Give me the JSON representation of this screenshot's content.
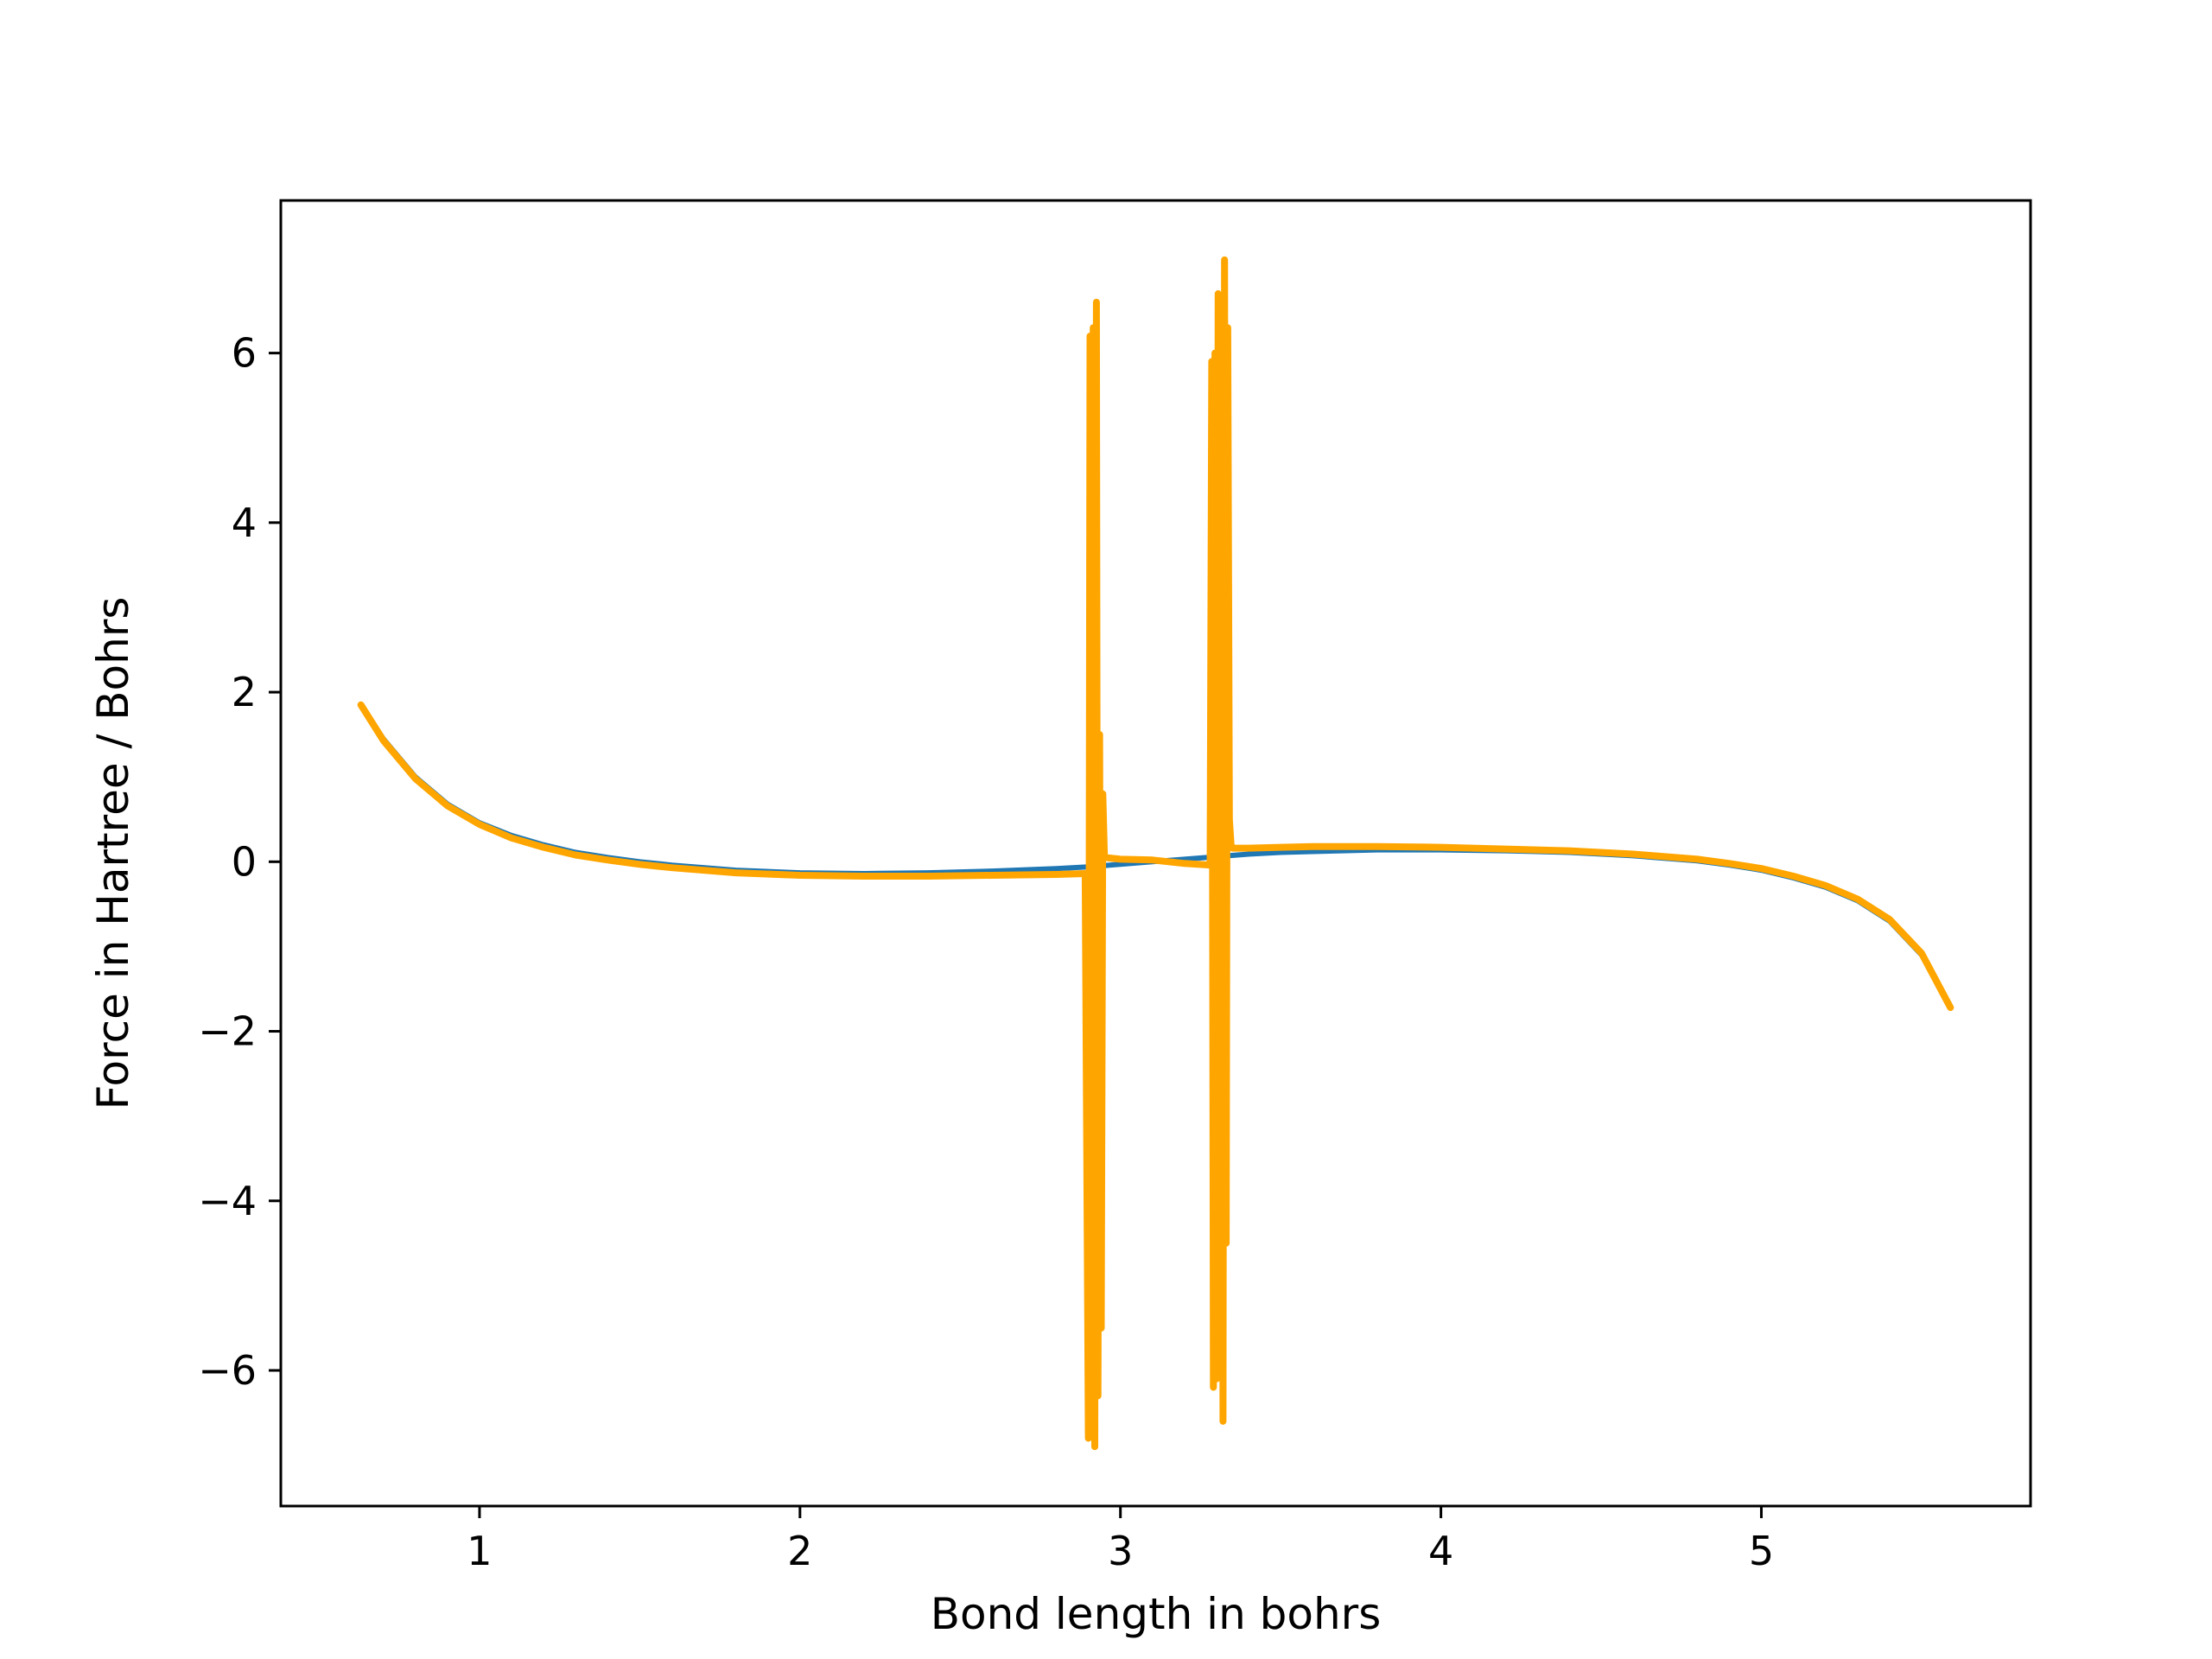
{
  "chart_data": {
    "type": "line",
    "title": "",
    "xlabel": "Bond length in bohrs",
    "ylabel": "Force in Hartree / Bohrs",
    "xlim": [
      0.38,
      5.84
    ],
    "ylim": [
      -7.6,
      7.8
    ],
    "x_ticks": [
      1,
      2,
      3,
      4,
      5
    ],
    "x_tick_labels": [
      "1",
      "2",
      "3",
      "4",
      "5"
    ],
    "y_ticks": [
      -6,
      -4,
      -2,
      0,
      2,
      4,
      6
    ],
    "y_tick_labels": [
      "−6",
      "−4",
      "−2",
      "0",
      "2",
      "4",
      "6"
    ],
    "grid": false,
    "legend": "none",
    "series": [
      {
        "color": "#1f77b4",
        "x": [
          0.63,
          0.7,
          0.8,
          0.9,
          1.0,
          1.1,
          1.2,
          1.3,
          1.4,
          1.5,
          1.6,
          1.8,
          2.0,
          2.2,
          2.4,
          2.6,
          2.8,
          2.9,
          3.0,
          3.1,
          3.2,
          3.3,
          3.4,
          3.5,
          3.6,
          3.8,
          4.0,
          4.2,
          4.4,
          4.6,
          4.8,
          4.9,
          5.0,
          5.1,
          5.2,
          5.3,
          5.4,
          5.5,
          5.59
        ],
        "y": [
          1.85,
          1.45,
          1.0,
          0.68,
          0.46,
          0.31,
          0.2,
          0.11,
          0.05,
          0.0,
          -0.04,
          -0.1,
          -0.13,
          -0.14,
          -0.13,
          -0.11,
          -0.08,
          -0.06,
          -0.03,
          0.0,
          0.03,
          0.06,
          0.09,
          0.11,
          0.12,
          0.14,
          0.14,
          0.13,
          0.11,
          0.07,
          0.01,
          -0.04,
          -0.1,
          -0.19,
          -0.3,
          -0.46,
          -0.7,
          -1.1,
          -1.72
        ]
      },
      {
        "color": "#ffa500",
        "x": [
          0.63,
          0.7,
          0.8,
          0.9,
          1.0,
          1.1,
          1.2,
          1.3,
          1.4,
          1.5,
          1.6,
          1.8,
          2.0,
          2.2,
          2.4,
          2.6,
          2.8,
          2.89,
          2.9,
          2.905,
          2.91,
          2.915,
          2.92,
          2.925,
          2.93,
          2.935,
          2.94,
          2.945,
          2.95,
          3.0,
          3.1,
          3.2,
          3.28,
          3.285,
          3.29,
          3.295,
          3.3,
          3.305,
          3.31,
          3.315,
          3.32,
          3.325,
          3.33,
          3.335,
          3.34,
          3.345,
          3.35,
          3.4,
          3.5,
          3.6,
          3.8,
          4.0,
          4.2,
          4.4,
          4.6,
          4.8,
          4.9,
          5.0,
          5.1,
          5.2,
          5.3,
          5.4,
          5.5,
          5.59
        ],
        "y": [
          1.85,
          1.43,
          0.98,
          0.66,
          0.44,
          0.28,
          0.17,
          0.08,
          0.02,
          -0.03,
          -0.07,
          -0.13,
          -0.16,
          -0.17,
          -0.17,
          -0.16,
          -0.15,
          -0.14,
          -6.8,
          6.2,
          -6.6,
          6.3,
          -6.9,
          6.6,
          -6.3,
          1.5,
          -5.5,
          0.8,
          0.05,
          0.03,
          0.02,
          -0.02,
          -0.04,
          5.9,
          -6.2,
          6.0,
          -6.1,
          6.7,
          -5.0,
          6.5,
          -6.6,
          7.1,
          -4.5,
          6.3,
          0.5,
          0.2,
          0.16,
          0.16,
          0.17,
          0.18,
          0.18,
          0.17,
          0.15,
          0.13,
          0.09,
          0.03,
          -0.02,
          -0.08,
          -0.17,
          -0.28,
          -0.44,
          -0.68,
          -1.08,
          -1.72
        ]
      }
    ]
  }
}
